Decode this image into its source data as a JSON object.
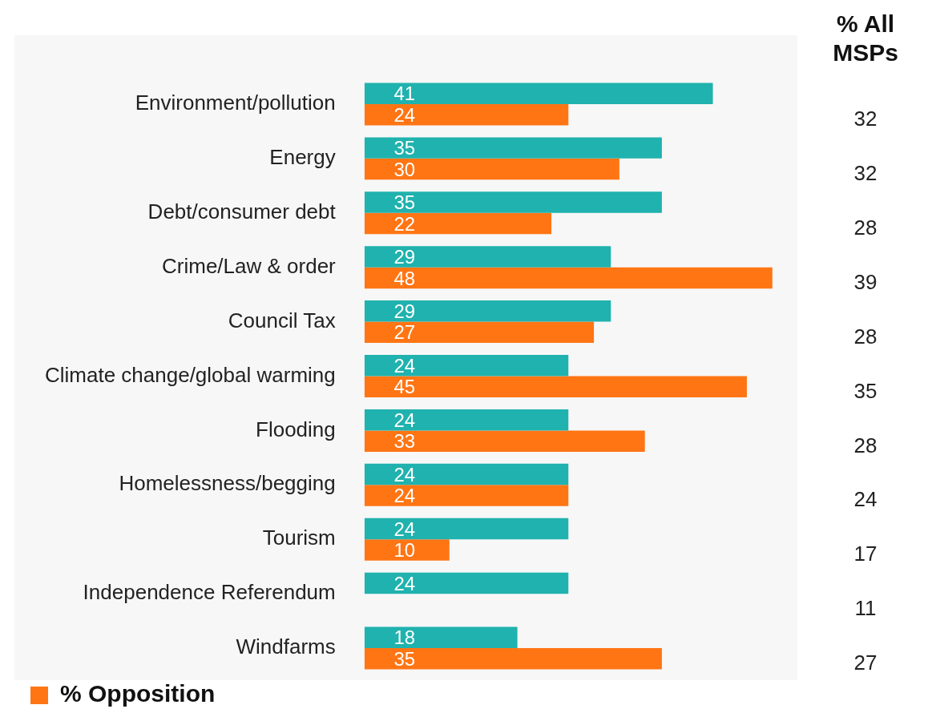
{
  "chart_data": {
    "type": "bar",
    "orientation": "horizontal",
    "categories": [
      "Environment/pollution",
      "Energy",
      "Debt/consumer debt",
      "Crime/Law & order",
      "Council Tax",
      "Climate change/global warming",
      "Flooding",
      "Homelessness/begging",
      "Tourism",
      "Independence Referendum",
      "Windfarms"
    ],
    "series": [
      {
        "color": "#20b2ae",
        "values": [
          41,
          35,
          35,
          29,
          29,
          24,
          24,
          24,
          24,
          24,
          18
        ]
      },
      {
        "name": "% Opposition",
        "color": "#ff7514",
        "values": [
          24,
          30,
          22,
          48,
          27,
          45,
          33,
          24,
          10,
          null,
          35
        ]
      }
    ],
    "annotations": [
      "% All MSPs",
      "32",
      "32",
      "28",
      "39",
      "28",
      "35",
      "28",
      "24",
      "17",
      "11",
      "27"
    ],
    "data_labels": true,
    "legend": "bottom left"
  }
}
